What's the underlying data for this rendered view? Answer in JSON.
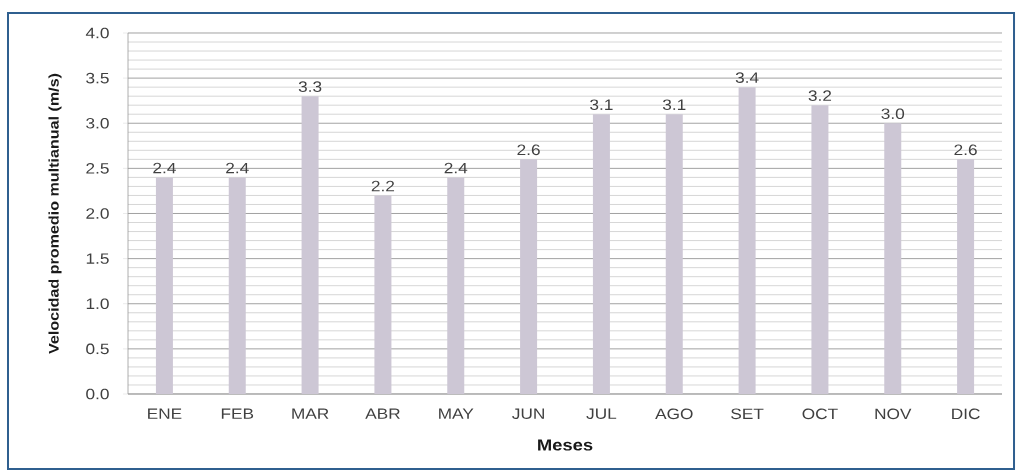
{
  "chart_data": {
    "type": "bar",
    "xlabel": "Meses",
    "ylabel": "Velocidad promedio multianual (m/s)",
    "categories": [
      "ENE",
      "FEB",
      "MAR",
      "ABR",
      "MAY",
      "JUN",
      "JUL",
      "AGO",
      "SET",
      "OCT",
      "NOV",
      "DIC"
    ],
    "values": [
      2.4,
      2.4,
      3.3,
      2.2,
      2.4,
      2.6,
      3.1,
      3.1,
      3.4,
      3.2,
      3.0,
      2.6
    ],
    "value_labels": [
      "2.4",
      "2.4",
      "3.3",
      "2.2",
      "2.4",
      "2.6",
      "3.1",
      "3.1",
      "3.4",
      "3.2",
      "3.0",
      "2.6"
    ],
    "color": "#cdc7d5",
    "ylim": [
      0,
      4
    ],
    "yticks": [
      {
        "value": 0,
        "label": "0.0"
      },
      {
        "value": 0.1,
        "label": null
      },
      {
        "value": 0.2,
        "label": null
      },
      {
        "value": 0.3,
        "label": null
      },
      {
        "value": 0.4,
        "label": null
      },
      {
        "value": 0.5,
        "label": "0.5"
      },
      {
        "value": 0.6,
        "label": null
      },
      {
        "value": 0.7,
        "label": null
      },
      {
        "value": 0.8,
        "label": null
      },
      {
        "value": 0.9,
        "label": null
      },
      {
        "value": 1.0,
        "label": "1.0"
      },
      {
        "value": 1.1,
        "label": null
      },
      {
        "value": 1.2,
        "label": null
      },
      {
        "value": 1.3,
        "label": null
      },
      {
        "value": 1.4,
        "label": null
      },
      {
        "value": 1.5,
        "label": "1.5"
      },
      {
        "value": 1.6,
        "label": null
      },
      {
        "value": 1.7,
        "label": null
      },
      {
        "value": 1.8,
        "label": null
      },
      {
        "value": 1.9,
        "label": null
      },
      {
        "value": 2.0,
        "label": "2.0"
      },
      {
        "value": 2.1,
        "label": null
      },
      {
        "value": 2.2,
        "label": null
      },
      {
        "value": 2.3,
        "label": null
      },
      {
        "value": 2.4,
        "label": null
      },
      {
        "value": 2.5,
        "label": "2.5"
      },
      {
        "value": 2.6,
        "label": null
      },
      {
        "value": 2.7,
        "label": null
      },
      {
        "value": 2.8,
        "label": null
      },
      {
        "value": 2.9,
        "label": null
      },
      {
        "value": 3.0,
        "label": "3.0"
      },
      {
        "value": 3.1,
        "label": null
      },
      {
        "value": 3.2,
        "label": null
      },
      {
        "value": 3.3,
        "label": null
      },
      {
        "value": 3.4,
        "label": null
      },
      {
        "value": 3.5,
        "label": "3.5"
      },
      {
        "value": 3.6,
        "label": null
      },
      {
        "value": 3.7,
        "label": null
      },
      {
        "value": 3.8,
        "label": null
      },
      {
        "value": 3.9,
        "label": null
      },
      {
        "value": 4.0,
        "label": "4.0"
      }
    ],
    "grid": "y"
  }
}
